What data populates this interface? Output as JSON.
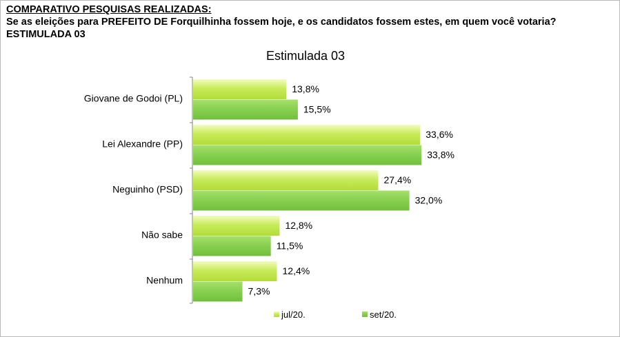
{
  "header": {
    "heading": "COMPARATIVO PESQUISAS REALIZADAS:",
    "question": "Se as eleições para PREFEITO DE Forquilhinha fossem hoje, e os candidatos fossem estes, em quem você votaria? ESTIMULADA 03"
  },
  "colors": {
    "series_jul": "#c8ec5a",
    "series_set": "#86cf4f",
    "frame": "#b9b9b9"
  },
  "chart_data": {
    "type": "bar",
    "orientation": "horizontal",
    "title": "Estimulada 03",
    "categories": [
      "Giovane de Godoi (PL)",
      "Lei Alexandre (PP)",
      "Neguinho (PSD)",
      "Não sabe",
      "Nenhum"
    ],
    "series": [
      {
        "name": "jul/20.",
        "values": [
          13.8,
          33.6,
          27.4,
          12.8,
          12.4
        ],
        "labels": [
          "13,8%",
          "33,6%",
          "27,4%",
          "12,8%",
          "12,4%"
        ]
      },
      {
        "name": "set/20.",
        "values": [
          15.5,
          33.8,
          32.0,
          11.5,
          7.3
        ],
        "labels": [
          "15,5%",
          "33,8%",
          "32,0%",
          "11,5%",
          "7,3%"
        ]
      }
    ],
    "xlim": [
      0,
      50
    ],
    "grid": false,
    "legend_position": "bottom"
  }
}
